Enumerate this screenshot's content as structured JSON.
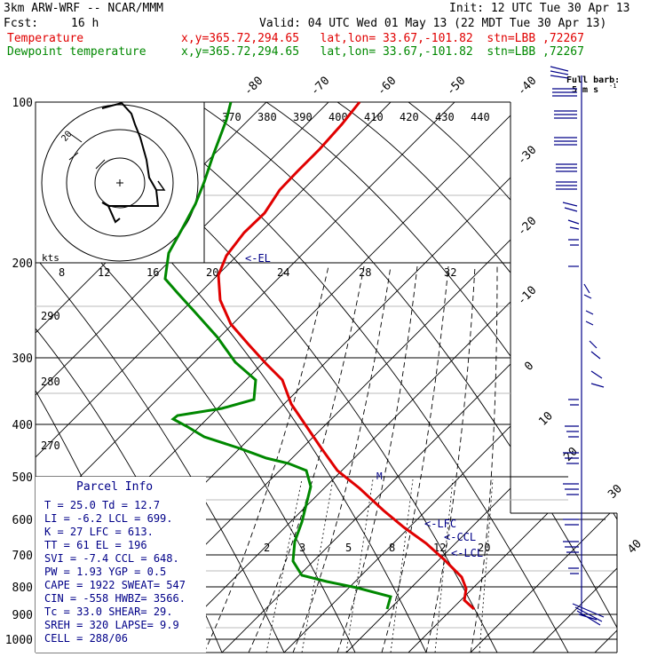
{
  "header": {
    "model": "3km ARW-WRF -- NCAR/MMM",
    "init": "Init: 12 UTC Tue 30 Apr 13",
    "fcst_label": "Fcst:",
    "fcst_value": "16 h",
    "valid": "Valid: 04 UTC Wed 01 May 13 (22 MDT Tue 30 Apr 13)"
  },
  "legend": {
    "temperature": {
      "label": "Temperature",
      "info": "x,y=365.72,294.65   lat,lon= 33.67,-101.82  stn=LBB ,72267",
      "color": "#e00000"
    },
    "dewpoint": {
      "label": "Dewpoint temperature",
      "info": "x,y=365.72,294.65   lat,lon= 33.67,-101.82  stn=LBB ,72267",
      "color": "#008800"
    }
  },
  "barb_key": {
    "title": "Full barb:",
    "value": "5 m s"
  },
  "hodograph": {
    "units": "kts",
    "theta_labels": [
      "370",
      "380",
      "390",
      "400",
      "410",
      "420",
      "430",
      "440"
    ]
  },
  "pressure_labels": [
    "100",
    "200",
    "300",
    "400",
    "500",
    "600",
    "700",
    "800",
    "900",
    "1000"
  ],
  "mixing_ratio_labels": [
    "2",
    "3",
    "5",
    "8",
    "12",
    "20"
  ],
  "theta_left_labels": [
    "290",
    "280",
    "270"
  ],
  "wind_speed_labels": [
    "8",
    "12",
    "16",
    "20",
    "24",
    "28",
    "32"
  ],
  "temp_labels": [
    "-80",
    "-70",
    "-60",
    "-50",
    "-40",
    "-30",
    "-20",
    "-10",
    "0",
    "10",
    "20",
    "30",
    "40"
  ],
  "annotations": {
    "el": "<-EL",
    "lfc": "<-LFC",
    "ccl": "<-CCL",
    "lcl": "<-LCL"
  },
  "parcel_info": {
    "title": "Parcel Info",
    "rows": [
      "T    =   25.0  Td =  12.7",
      "LI   =   -6.2  LCL =  699.",
      "K    =     27  LFC =  613.",
      "TT   =     61  EL  =  196",
      "SVI  =   -7.4  CCL =  648.",
      "PW   =   1.93  YGP =   0.5",
      "CAPE =   1922  SWEAT=  547",
      "CIN  =   -558  HWBZ= 3566.",
      "Tc   =   33.0  SHEAR=  29.",
      "SREH =    320  LAPSE=  9.9",
      "CELL = 288/06"
    ]
  },
  "colors": {
    "temperature": "#e00000",
    "dewpoint": "#008800",
    "barbs": "#000088",
    "grid": "#000000"
  }
}
